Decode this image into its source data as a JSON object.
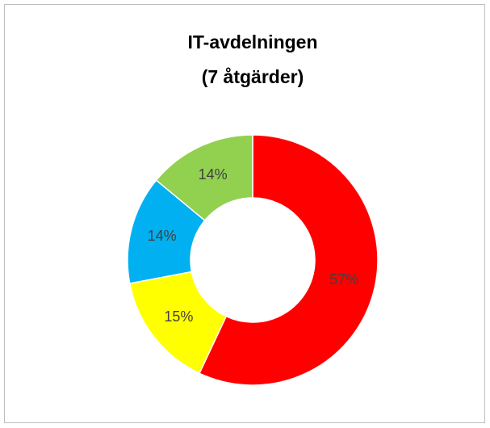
{
  "chart_data": {
    "type": "donut",
    "title": [
      "IT-avdelningen",
      "(7 åtgärder)"
    ],
    "values": [
      57,
      15,
      14,
      14
    ],
    "value_labels": [
      "57%",
      "15%",
      "14%",
      "14%"
    ],
    "colors": [
      "#ff0000",
      "#ffff00",
      "#00b0f0",
      "#92d050"
    ]
  }
}
